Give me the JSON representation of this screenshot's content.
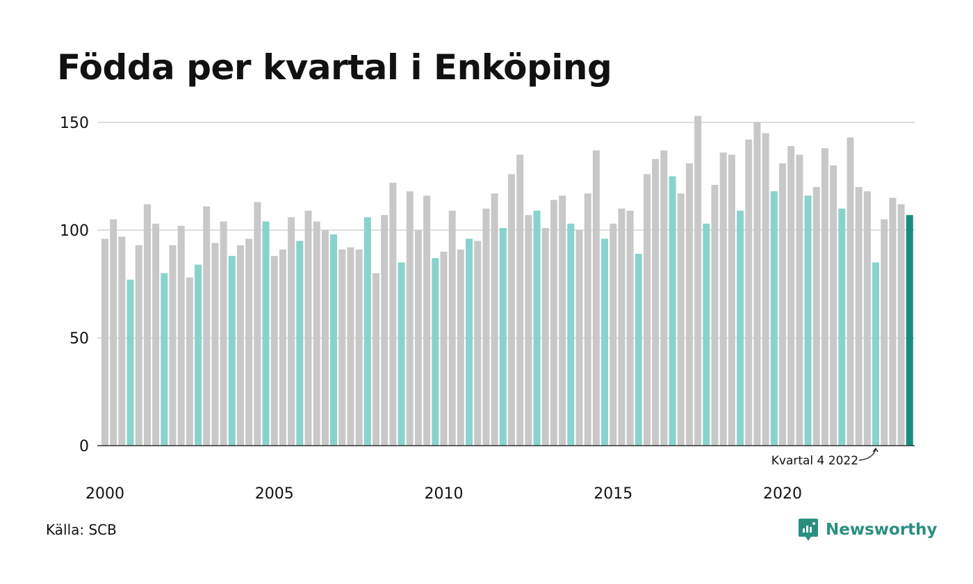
{
  "chart_data": {
    "type": "bar",
    "title": "Födda per kvartal i Enköping",
    "source": "Källa: SCB",
    "brand": "Newsworthy",
    "start_year": 2000,
    "x_tick_labels": [
      "2000",
      "2005",
      "2010",
      "2015",
      "2020"
    ],
    "y_ticks": [
      0,
      50,
      100,
      150
    ],
    "ylim": [
      0,
      155
    ],
    "grid": true,
    "annotation": "Kvartal 4 2022",
    "colors": {
      "other_quarters": "#c8c8c8",
      "quarter_4": "#88d3cb",
      "latest": "#1a8c7e",
      "brand": "#2a8f80",
      "grid": "#dddddd"
    },
    "values": [
      96,
      105,
      97,
      77,
      93,
      112,
      103,
      80,
      93,
      102,
      78,
      84,
      111,
      94,
      104,
      88,
      93,
      96,
      113,
      104,
      88,
      91,
      106,
      95,
      109,
      104,
      100,
      98,
      91,
      92,
      91,
      106,
      80,
      107,
      122,
      85,
      118,
      100,
      116,
      87,
      90,
      109,
      91,
      96,
      95,
      110,
      117,
      101,
      126,
      135,
      107,
      109,
      101,
      114,
      116,
      103,
      100,
      117,
      137,
      96,
      103,
      110,
      109,
      89,
      126,
      133,
      137,
      125,
      117,
      131,
      153,
      103,
      121,
      136,
      135,
      109,
      142,
      150,
      145,
      118,
      131,
      139,
      135,
      116,
      120,
      138,
      130,
      110,
      143,
      120,
      118,
      85,
      105,
      115,
      112,
      107
    ]
  }
}
